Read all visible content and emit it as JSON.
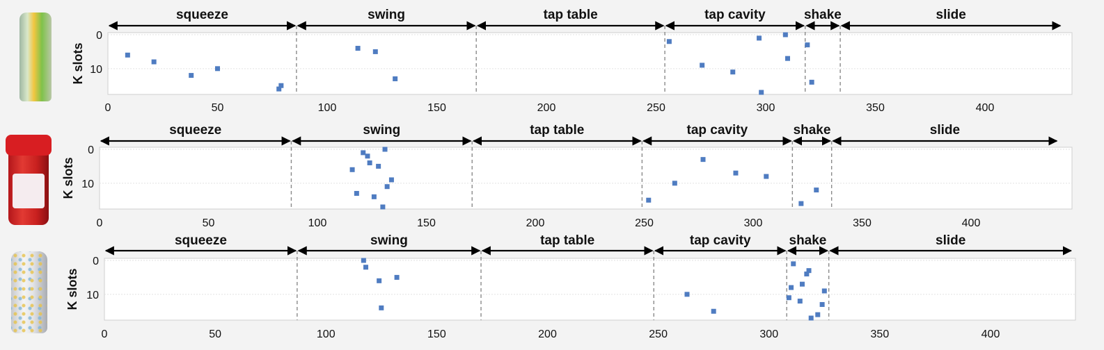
{
  "colors": {
    "marker": "#4f7cc1",
    "arrow": "#000000",
    "divider": "#8a8a8a",
    "frame": "#cfcfcf",
    "grid": "#e2e2e2"
  },
  "objects": [
    {
      "icon": "soda-can-icon"
    },
    {
      "icon": "vinegar-bottle-icon"
    },
    {
      "icon": "seltzer-can-icon"
    }
  ],
  "chart_data": [
    {
      "type": "scatter",
      "ylabel": "K slots",
      "xlim": [
        0,
        440
      ],
      "ylim": [
        0,
        17
      ],
      "y_inverted": true,
      "x_ticks": [
        0,
        50,
        100,
        150,
        200,
        250,
        300,
        350,
        400
      ],
      "y_ticks": [
        0,
        10
      ],
      "phases": [
        {
          "label": "squeeze",
          "start": 0,
          "end": 86
        },
        {
          "label": "swing",
          "start": 86,
          "end": 168
        },
        {
          "label": "tap table",
          "start": 168,
          "end": 254
        },
        {
          "label": "tap cavity",
          "start": 254,
          "end": 318
        },
        {
          "label": "shake",
          "start": 318,
          "end": 334
        },
        {
          "label": "slide",
          "start": 334,
          "end": 435
        }
      ],
      "points": [
        [
          9,
          6
        ],
        [
          21,
          8
        ],
        [
          38,
          12
        ],
        [
          50,
          10
        ],
        [
          78,
          16
        ],
        [
          79,
          15
        ],
        [
          114,
          4
        ],
        [
          122,
          5
        ],
        [
          131,
          13
        ],
        [
          256,
          2
        ],
        [
          271,
          9
        ],
        [
          285,
          11
        ],
        [
          297,
          1
        ],
        [
          298,
          17
        ],
        [
          309,
          0
        ],
        [
          310,
          7
        ],
        [
          319,
          3
        ],
        [
          321,
          14
        ]
      ]
    },
    {
      "type": "scatter",
      "ylabel": "K slots",
      "xlim": [
        0,
        440
      ],
      "ylim": [
        0,
        17
      ],
      "y_inverted": true,
      "x_ticks": [
        0,
        50,
        100,
        150,
        200,
        250,
        300,
        350,
        400
      ],
      "y_ticks": [
        0,
        10
      ],
      "phases": [
        {
          "label": "squeeze",
          "start": 0,
          "end": 88
        },
        {
          "label": "swing",
          "start": 88,
          "end": 171
        },
        {
          "label": "tap table",
          "start": 171,
          "end": 249
        },
        {
          "label": "tap cavity",
          "start": 249,
          "end": 318
        },
        {
          "label": "shake",
          "start": 318,
          "end": 336
        },
        {
          "label": "slide",
          "start": 336,
          "end": 440
        }
      ],
      "points": [
        [
          116,
          6
        ],
        [
          118,
          13
        ],
        [
          121,
          1
        ],
        [
          123,
          2
        ],
        [
          124,
          4
        ],
        [
          126,
          14
        ],
        [
          128,
          5
        ],
        [
          130,
          17
        ],
        [
          131,
          0
        ],
        [
          132,
          11
        ],
        [
          134,
          9
        ],
        [
          252,
          15
        ],
        [
          264,
          10
        ],
        [
          277,
          3
        ],
        [
          292,
          7
        ],
        [
          306,
          8
        ],
        [
          322,
          16
        ],
        [
          329,
          12
        ]
      ]
    },
    {
      "type": "scatter",
      "ylabel": "K slots",
      "xlim": [
        0,
        440
      ],
      "ylim": [
        0,
        17
      ],
      "y_inverted": true,
      "x_ticks": [
        0,
        50,
        100,
        150,
        200,
        250,
        300,
        350,
        400
      ],
      "y_ticks": [
        0,
        10
      ],
      "phases": [
        {
          "label": "squeeze",
          "start": 0,
          "end": 87
        },
        {
          "label": "swing",
          "start": 87,
          "end": 170
        },
        {
          "label": "tap table",
          "start": 170,
          "end": 248
        },
        {
          "label": "tap cavity",
          "start": 248,
          "end": 308
        },
        {
          "label": "shake",
          "start": 308,
          "end": 327
        },
        {
          "label": "slide",
          "start": 327,
          "end": 437
        }
      ],
      "points": [
        [
          117,
          0
        ],
        [
          118,
          2
        ],
        [
          124,
          6
        ],
        [
          125,
          14
        ],
        [
          132,
          5
        ],
        [
          263,
          10
        ],
        [
          275,
          15
        ],
        [
          309,
          11
        ],
        [
          310,
          8
        ],
        [
          311,
          1
        ],
        [
          314,
          12
        ],
        [
          315,
          7
        ],
        [
          317,
          4
        ],
        [
          318,
          3
        ],
        [
          319,
          17
        ],
        [
          322,
          16
        ],
        [
          324,
          13
        ],
        [
          325,
          9
        ]
      ]
    }
  ]
}
